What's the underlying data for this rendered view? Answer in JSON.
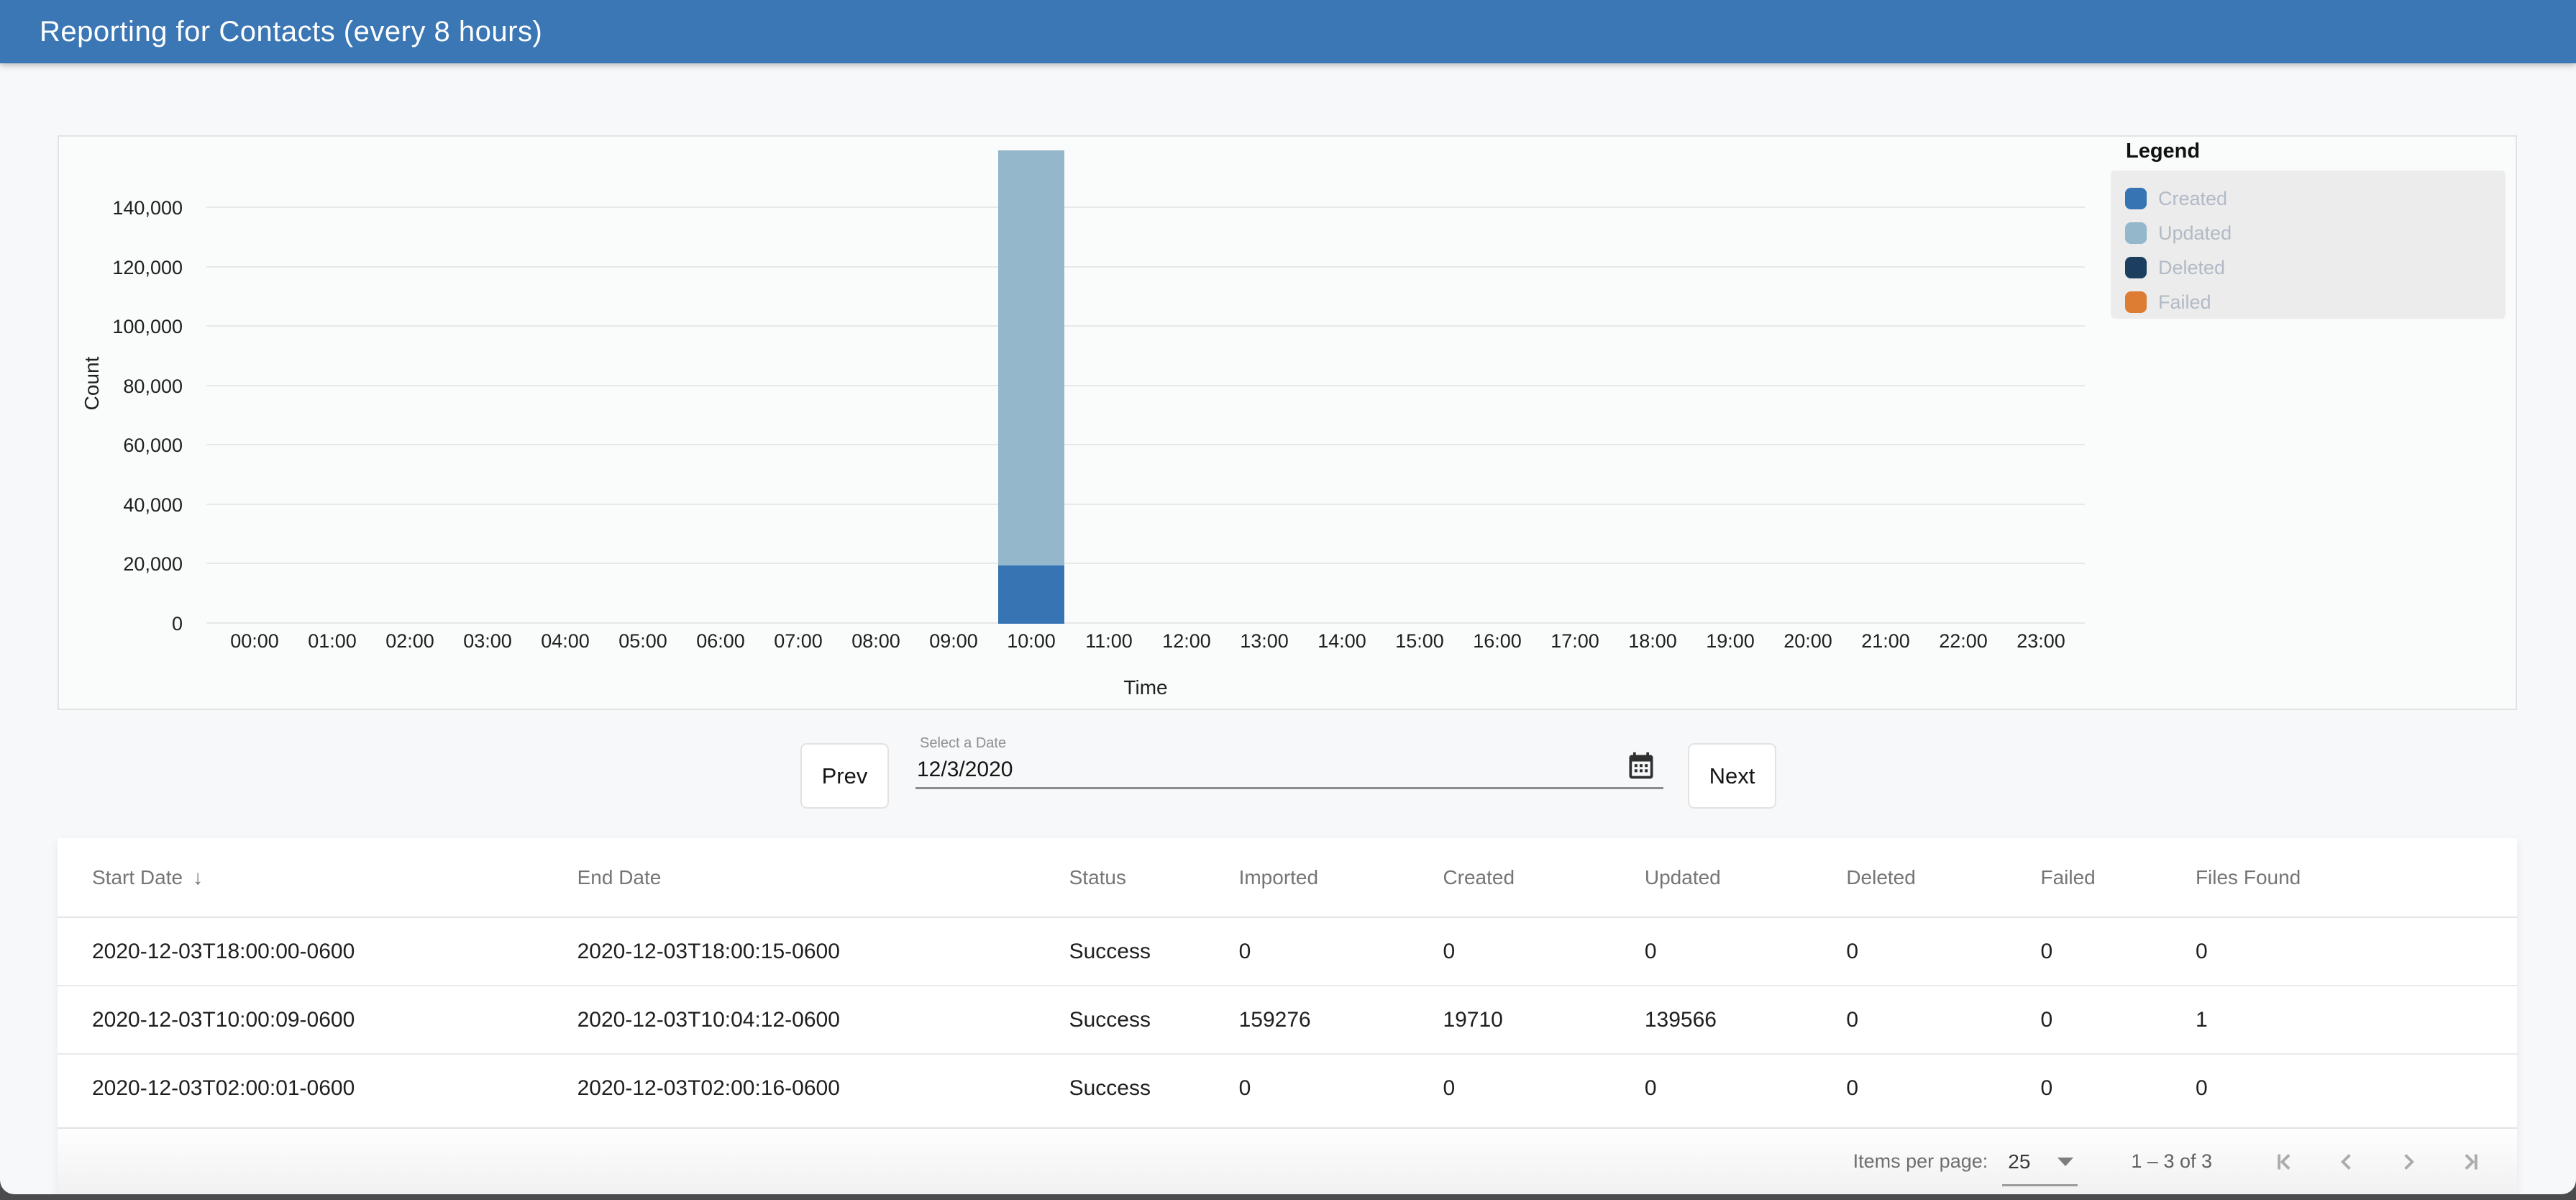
{
  "app_bar": {
    "title": "Reporting for Contacts (every 8 hours)",
    "background_color": "#3b77b4"
  },
  "chart_data": {
    "type": "bar",
    "stacked": true,
    "xlabel": "Time",
    "ylabel": "Count",
    "categories": [
      "00:00",
      "01:00",
      "02:00",
      "03:00",
      "04:00",
      "05:00",
      "06:00",
      "07:00",
      "08:00",
      "09:00",
      "10:00",
      "11:00",
      "12:00",
      "13:00",
      "14:00",
      "15:00",
      "16:00",
      "17:00",
      "18:00",
      "19:00",
      "20:00",
      "21:00",
      "22:00",
      "23:00"
    ],
    "series": [
      {
        "name": "Created",
        "color": "#3774b3",
        "values": [
          0,
          0,
          0,
          0,
          0,
          0,
          0,
          0,
          0,
          0,
          19710,
          0,
          0,
          0,
          0,
          0,
          0,
          0,
          0,
          0,
          0,
          0,
          0,
          0
        ]
      },
      {
        "name": "Updated",
        "color": "#95b7cb",
        "values": [
          0,
          0,
          0,
          0,
          0,
          0,
          0,
          0,
          0,
          0,
          139566,
          0,
          0,
          0,
          0,
          0,
          0,
          0,
          0,
          0,
          0,
          0,
          0,
          0
        ]
      },
      {
        "name": "Deleted",
        "color": "#1d3f5f",
        "values": [
          0,
          0,
          0,
          0,
          0,
          0,
          0,
          0,
          0,
          0,
          0,
          0,
          0,
          0,
          0,
          0,
          0,
          0,
          0,
          0,
          0,
          0,
          0,
          0
        ]
      },
      {
        "name": "Failed",
        "color": "#dd7d33",
        "values": [
          0,
          0,
          0,
          0,
          0,
          0,
          0,
          0,
          0,
          0,
          0,
          0,
          0,
          0,
          0,
          0,
          0,
          0,
          0,
          0,
          0,
          0,
          0,
          0
        ]
      }
    ],
    "ylim": [
      0,
      164000
    ],
    "yticks": [
      0,
      20000,
      40000,
      60000,
      80000,
      100000,
      120000,
      140000
    ],
    "grid": "horizontal",
    "legend": {
      "title": "Legend",
      "position": "top-right"
    }
  },
  "date_controls": {
    "prev_label": "Prev",
    "next_label": "Next",
    "date_field_label": "Select a Date",
    "date_value": "12/3/2020"
  },
  "table": {
    "columns": [
      "Start Date",
      "End Date",
      "Status",
      "Imported",
      "Created",
      "Updated",
      "Deleted",
      "Failed",
      "Files Found"
    ],
    "sorted_column": "Start Date",
    "sort_direction": "desc",
    "rows": [
      [
        "2020-12-03T18:00:00-0600",
        "2020-12-03T18:00:15-0600",
        "Success",
        "0",
        "0",
        "0",
        "0",
        "0",
        "0"
      ],
      [
        "2020-12-03T10:00:09-0600",
        "2020-12-03T10:04:12-0600",
        "Success",
        "159276",
        "19710",
        "139566",
        "0",
        "0",
        "1"
      ],
      [
        "2020-12-03T02:00:01-0600",
        "2020-12-03T02:00:16-0600",
        "Success",
        "0",
        "0",
        "0",
        "0",
        "0",
        "0"
      ]
    ]
  },
  "pagination": {
    "items_per_page_label": "Items per page:",
    "items_per_page_value": "25",
    "range_label": "1 – 3 of 3"
  }
}
